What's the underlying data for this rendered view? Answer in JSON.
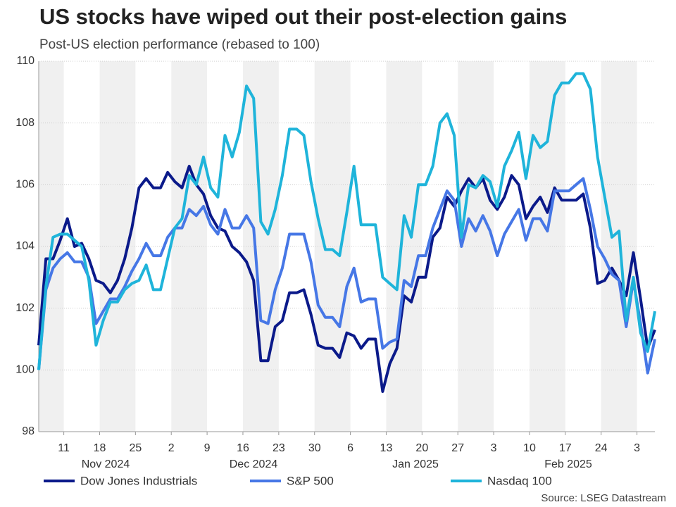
{
  "chart_data": {
    "type": "line",
    "title": "US stocks have wiped out their post-election gains",
    "subtitle": "Post-US election performance (rebased to 100)",
    "source": "Source: LSEG Datastream",
    "categories": [
      null,
      null,
      null,
      null,
      "11",
      null,
      null,
      null,
      null,
      "18",
      null,
      null,
      null,
      null,
      "25",
      null,
      null,
      null,
      null,
      "2",
      null,
      null,
      null,
      null,
      "9",
      null,
      null,
      null,
      null,
      "16",
      null,
      null,
      null,
      null,
      "23",
      null,
      null,
      null,
      null,
      "30",
      null,
      null,
      null,
      null,
      "6",
      null,
      null,
      null,
      null,
      "13",
      null,
      null,
      null,
      null,
      "20",
      null,
      null,
      null,
      null,
      "27",
      null,
      null,
      null,
      null,
      "3",
      null,
      null,
      null,
      null,
      "10",
      null,
      null,
      null,
      null,
      "17",
      null,
      null,
      null,
      null,
      "24",
      null,
      null,
      null,
      null,
      "3",
      null,
      null
    ],
    "month_labels": [
      "Nov 2024",
      "Dec 2024",
      "Jan 2025",
      "Feb 2025"
    ],
    "series": [
      {
        "name": "Dow Jones Industrials",
        "color": "#0b1a8a",
        "values": [
          100.8,
          103.6,
          103.6,
          104.2,
          104.9,
          104.0,
          104.1,
          103.6,
          102.9,
          102.8,
          102.5,
          102.9,
          103.6,
          104.6,
          105.9,
          106.2,
          105.9,
          105.9,
          106.4,
          106.1,
          105.9,
          106.6,
          106.0,
          105.7,
          105.0,
          104.6,
          104.5,
          104.0,
          103.8,
          103.5,
          102.9,
          100.3,
          100.3,
          101.4,
          101.6,
          102.5,
          102.5,
          102.6,
          101.8,
          100.8,
          100.7,
          100.7,
          100.4,
          101.2,
          101.1,
          100.7,
          101.0,
          101.0,
          99.3,
          100.2,
          100.7,
          102.4,
          102.2,
          103.0,
          103.0,
          104.3,
          104.6,
          105.6,
          105.3,
          105.8,
          106.2,
          105.9,
          106.2,
          105.5,
          105.2,
          105.6,
          106.3,
          106.0,
          104.9,
          105.3,
          105.6,
          105.1,
          105.9,
          105.5,
          105.5,
          105.5,
          105.7,
          104.6,
          102.8,
          102.9,
          103.3,
          102.9,
          102.4,
          103.8,
          102.3,
          100.7,
          101.3
        ]
      },
      {
        "name": "S&P 500",
        "color": "#4677e6",
        "values": [
          100.0,
          102.6,
          103.3,
          103.6,
          103.8,
          103.5,
          103.5,
          103.0,
          101.5,
          101.9,
          102.3,
          102.3,
          102.7,
          103.2,
          103.6,
          104.1,
          103.7,
          103.7,
          104.3,
          104.6,
          104.6,
          105.2,
          105.0,
          105.3,
          104.7,
          104.4,
          105.2,
          104.6,
          104.6,
          105.0,
          104.6,
          101.6,
          101.5,
          102.6,
          103.3,
          104.4,
          104.4,
          104.4,
          103.5,
          102.1,
          101.7,
          101.7,
          101.4,
          102.7,
          103.3,
          102.2,
          102.3,
          102.3,
          100.7,
          100.9,
          101.0,
          102.9,
          102.7,
          103.7,
          103.7,
          104.6,
          105.2,
          105.8,
          105.5,
          104.0,
          104.9,
          104.5,
          105.0,
          104.5,
          103.7,
          104.4,
          104.8,
          105.2,
          104.2,
          104.9,
          104.9,
          104.5,
          105.8,
          105.8,
          105.8,
          106.0,
          106.2,
          105.2,
          104.0,
          103.6,
          103.1,
          102.9,
          101.4,
          102.9,
          101.5,
          99.9,
          101.0
        ]
      },
      {
        "name": "Nasdaq 100",
        "color": "#1fb4da",
        "values": [
          100.0,
          102.7,
          104.3,
          104.4,
          104.4,
          104.2,
          104.0,
          102.9,
          100.8,
          101.6,
          102.2,
          102.2,
          102.6,
          102.8,
          102.9,
          103.4,
          102.6,
          102.6,
          103.6,
          104.6,
          104.9,
          106.3,
          106.0,
          106.9,
          105.9,
          105.6,
          107.6,
          106.9,
          107.7,
          109.2,
          108.8,
          104.8,
          104.4,
          105.2,
          106.3,
          107.8,
          107.8,
          107.6,
          106.1,
          104.9,
          103.9,
          103.9,
          103.7,
          105.1,
          106.6,
          104.7,
          104.7,
          104.7,
          103.0,
          102.8,
          102.6,
          105.0,
          104.3,
          106.0,
          106.0,
          106.6,
          108.0,
          108.3,
          107.6,
          104.3,
          106.0,
          105.9,
          106.3,
          106.1,
          105.3,
          106.6,
          107.1,
          107.7,
          106.2,
          107.6,
          107.2,
          107.4,
          108.9,
          109.3,
          109.3,
          109.6,
          109.6,
          109.1,
          106.9,
          105.6,
          104.3,
          104.5,
          101.6,
          103.0,
          101.2,
          100.6,
          101.9
        ]
      }
    ],
    "ylim": [
      98,
      110
    ],
    "yticks": [
      98,
      100,
      102,
      104,
      106,
      108,
      110
    ],
    "grid": true
  }
}
